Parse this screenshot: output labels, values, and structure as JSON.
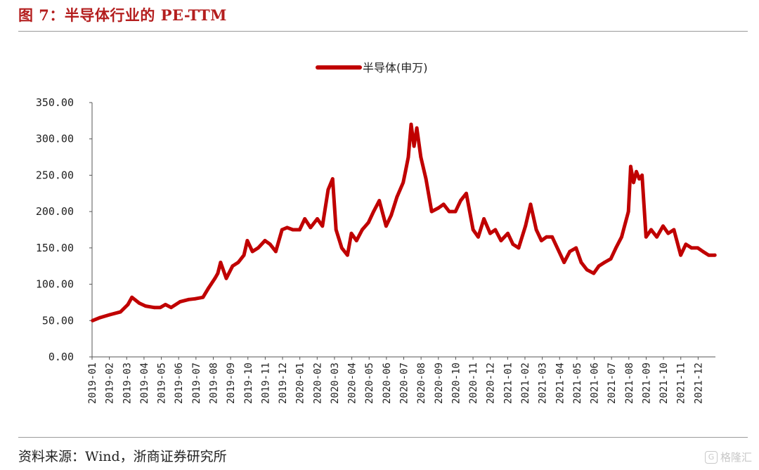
{
  "header": {
    "figure_title": "图 7：半导体行业的 PE-TTM"
  },
  "footer": {
    "source": "资料来源：Wind，浙商证券研究所",
    "watermark": "格隆汇",
    "watermark_icon": "g-badge-icon"
  },
  "colors": {
    "series": "#c00000",
    "title": "#b41e1e"
  },
  "chart_data": {
    "type": "line",
    "title": "",
    "xlabel": "",
    "ylabel": "",
    "ylim": [
      0,
      350
    ],
    "yticks": [
      "0.00",
      "50.00",
      "100.00",
      "150.00",
      "200.00",
      "250.00",
      "300.00",
      "350.00"
    ],
    "x_ticks": [
      "2019-01",
      "2019-02",
      "2019-03",
      "2019-04",
      "2019-05",
      "2019-06",
      "2019-07",
      "2019-08",
      "2019-09",
      "2019-10",
      "2019-11",
      "2019-12",
      "2020-01",
      "2020-02",
      "2020-03",
      "2020-04",
      "2020-05",
      "2020-06",
      "2020-07",
      "2020-08",
      "2020-09",
      "2020-10",
      "2020-11",
      "2020-12",
      "2021-01",
      "2021-02",
      "2021-03",
      "2021-04",
      "2021-05",
      "2021-06",
      "2021-07",
      "2021-08",
      "2021-09",
      "2021-10",
      "2021-11",
      "2021-12"
    ],
    "grid": false,
    "legend_position": "top-center",
    "series": [
      {
        "name": "半导体(申万)",
        "x": [
          "2019-01-02",
          "2019-01-15",
          "2019-02-01",
          "2019-02-20",
          "2019-03-05",
          "2019-03-12",
          "2019-03-25",
          "2019-04-05",
          "2019-04-20",
          "2019-05-01",
          "2019-05-10",
          "2019-05-20",
          "2019-06-05",
          "2019-06-20",
          "2019-07-01",
          "2019-07-15",
          "2019-07-25",
          "2019-08-05",
          "2019-08-10",
          "2019-08-15",
          "2019-08-25",
          "2019-09-05",
          "2019-09-15",
          "2019-09-25",
          "2019-10-01",
          "2019-10-10",
          "2019-10-20",
          "2019-11-01",
          "2019-11-10",
          "2019-11-20",
          "2019-12-01",
          "2019-12-10",
          "2019-12-20",
          "2020-01-01",
          "2020-01-10",
          "2020-01-20",
          "2020-02-01",
          "2020-02-10",
          "2020-02-20",
          "2020-02-28",
          "2020-03-05",
          "2020-03-15",
          "2020-03-25",
          "2020-04-01",
          "2020-04-10",
          "2020-04-20",
          "2020-05-01",
          "2020-05-10",
          "2020-05-20",
          "2020-06-01",
          "2020-06-10",
          "2020-06-20",
          "2020-07-01",
          "2020-07-05",
          "2020-07-10",
          "2020-07-15",
          "2020-07-20",
          "2020-07-25",
          "2020-08-01",
          "2020-08-10",
          "2020-08-20",
          "2020-09-01",
          "2020-09-10",
          "2020-09-20",
          "2020-10-01",
          "2020-10-10",
          "2020-10-20",
          "2020-11-01",
          "2020-11-10",
          "2020-11-20",
          "2020-12-01",
          "2020-12-10",
          "2020-12-20",
          "2021-01-01",
          "2021-01-10",
          "2021-01-20",
          "2021-02-01",
          "2021-02-10",
          "2021-02-20",
          "2021-03-01",
          "2021-03-10",
          "2021-03-20",
          "2021-04-01",
          "2021-04-10",
          "2021-04-20",
          "2021-05-01",
          "2021-05-10",
          "2021-05-20",
          "2021-06-01",
          "2021-06-10",
          "2021-06-20",
          "2021-07-01",
          "2021-07-10",
          "2021-07-20",
          "2021-08-01",
          "2021-08-05",
          "2021-08-10",
          "2021-08-15",
          "2021-08-20",
          "2021-08-25",
          "2021-09-01",
          "2021-09-10",
          "2021-09-20",
          "2021-10-01",
          "2021-10-10",
          "2021-10-20",
          "2021-11-01",
          "2021-11-10",
          "2021-11-20",
          "2021-12-01",
          "2021-12-10",
          "2021-12-20",
          "2021-12-31"
        ],
        "values": [
          50,
          54,
          58,
          62,
          72,
          82,
          74,
          70,
          68,
          68,
          72,
          68,
          76,
          79,
          80,
          82,
          95,
          108,
          115,
          130,
          108,
          125,
          130,
          140,
          160,
          145,
          150,
          160,
          155,
          145,
          175,
          178,
          175,
          175,
          190,
          178,
          190,
          180,
          230,
          245,
          175,
          150,
          140,
          170,
          160,
          175,
          185,
          200,
          215,
          180,
          195,
          220,
          240,
          255,
          275,
          320,
          290,
          315,
          275,
          245,
          200,
          205,
          210,
          200,
          200,
          215,
          225,
          175,
          165,
          190,
          170,
          175,
          160,
          170,
          155,
          150,
          180,
          210,
          175,
          160,
          165,
          165,
          145,
          130,
          145,
          150,
          130,
          120,
          115,
          125,
          130,
          135,
          150,
          165,
          200,
          262,
          240,
          255,
          245,
          250,
          165,
          175,
          165,
          180,
          170,
          175,
          140,
          155,
          150,
          150,
          145,
          140,
          140
        ]
      }
    ]
  }
}
